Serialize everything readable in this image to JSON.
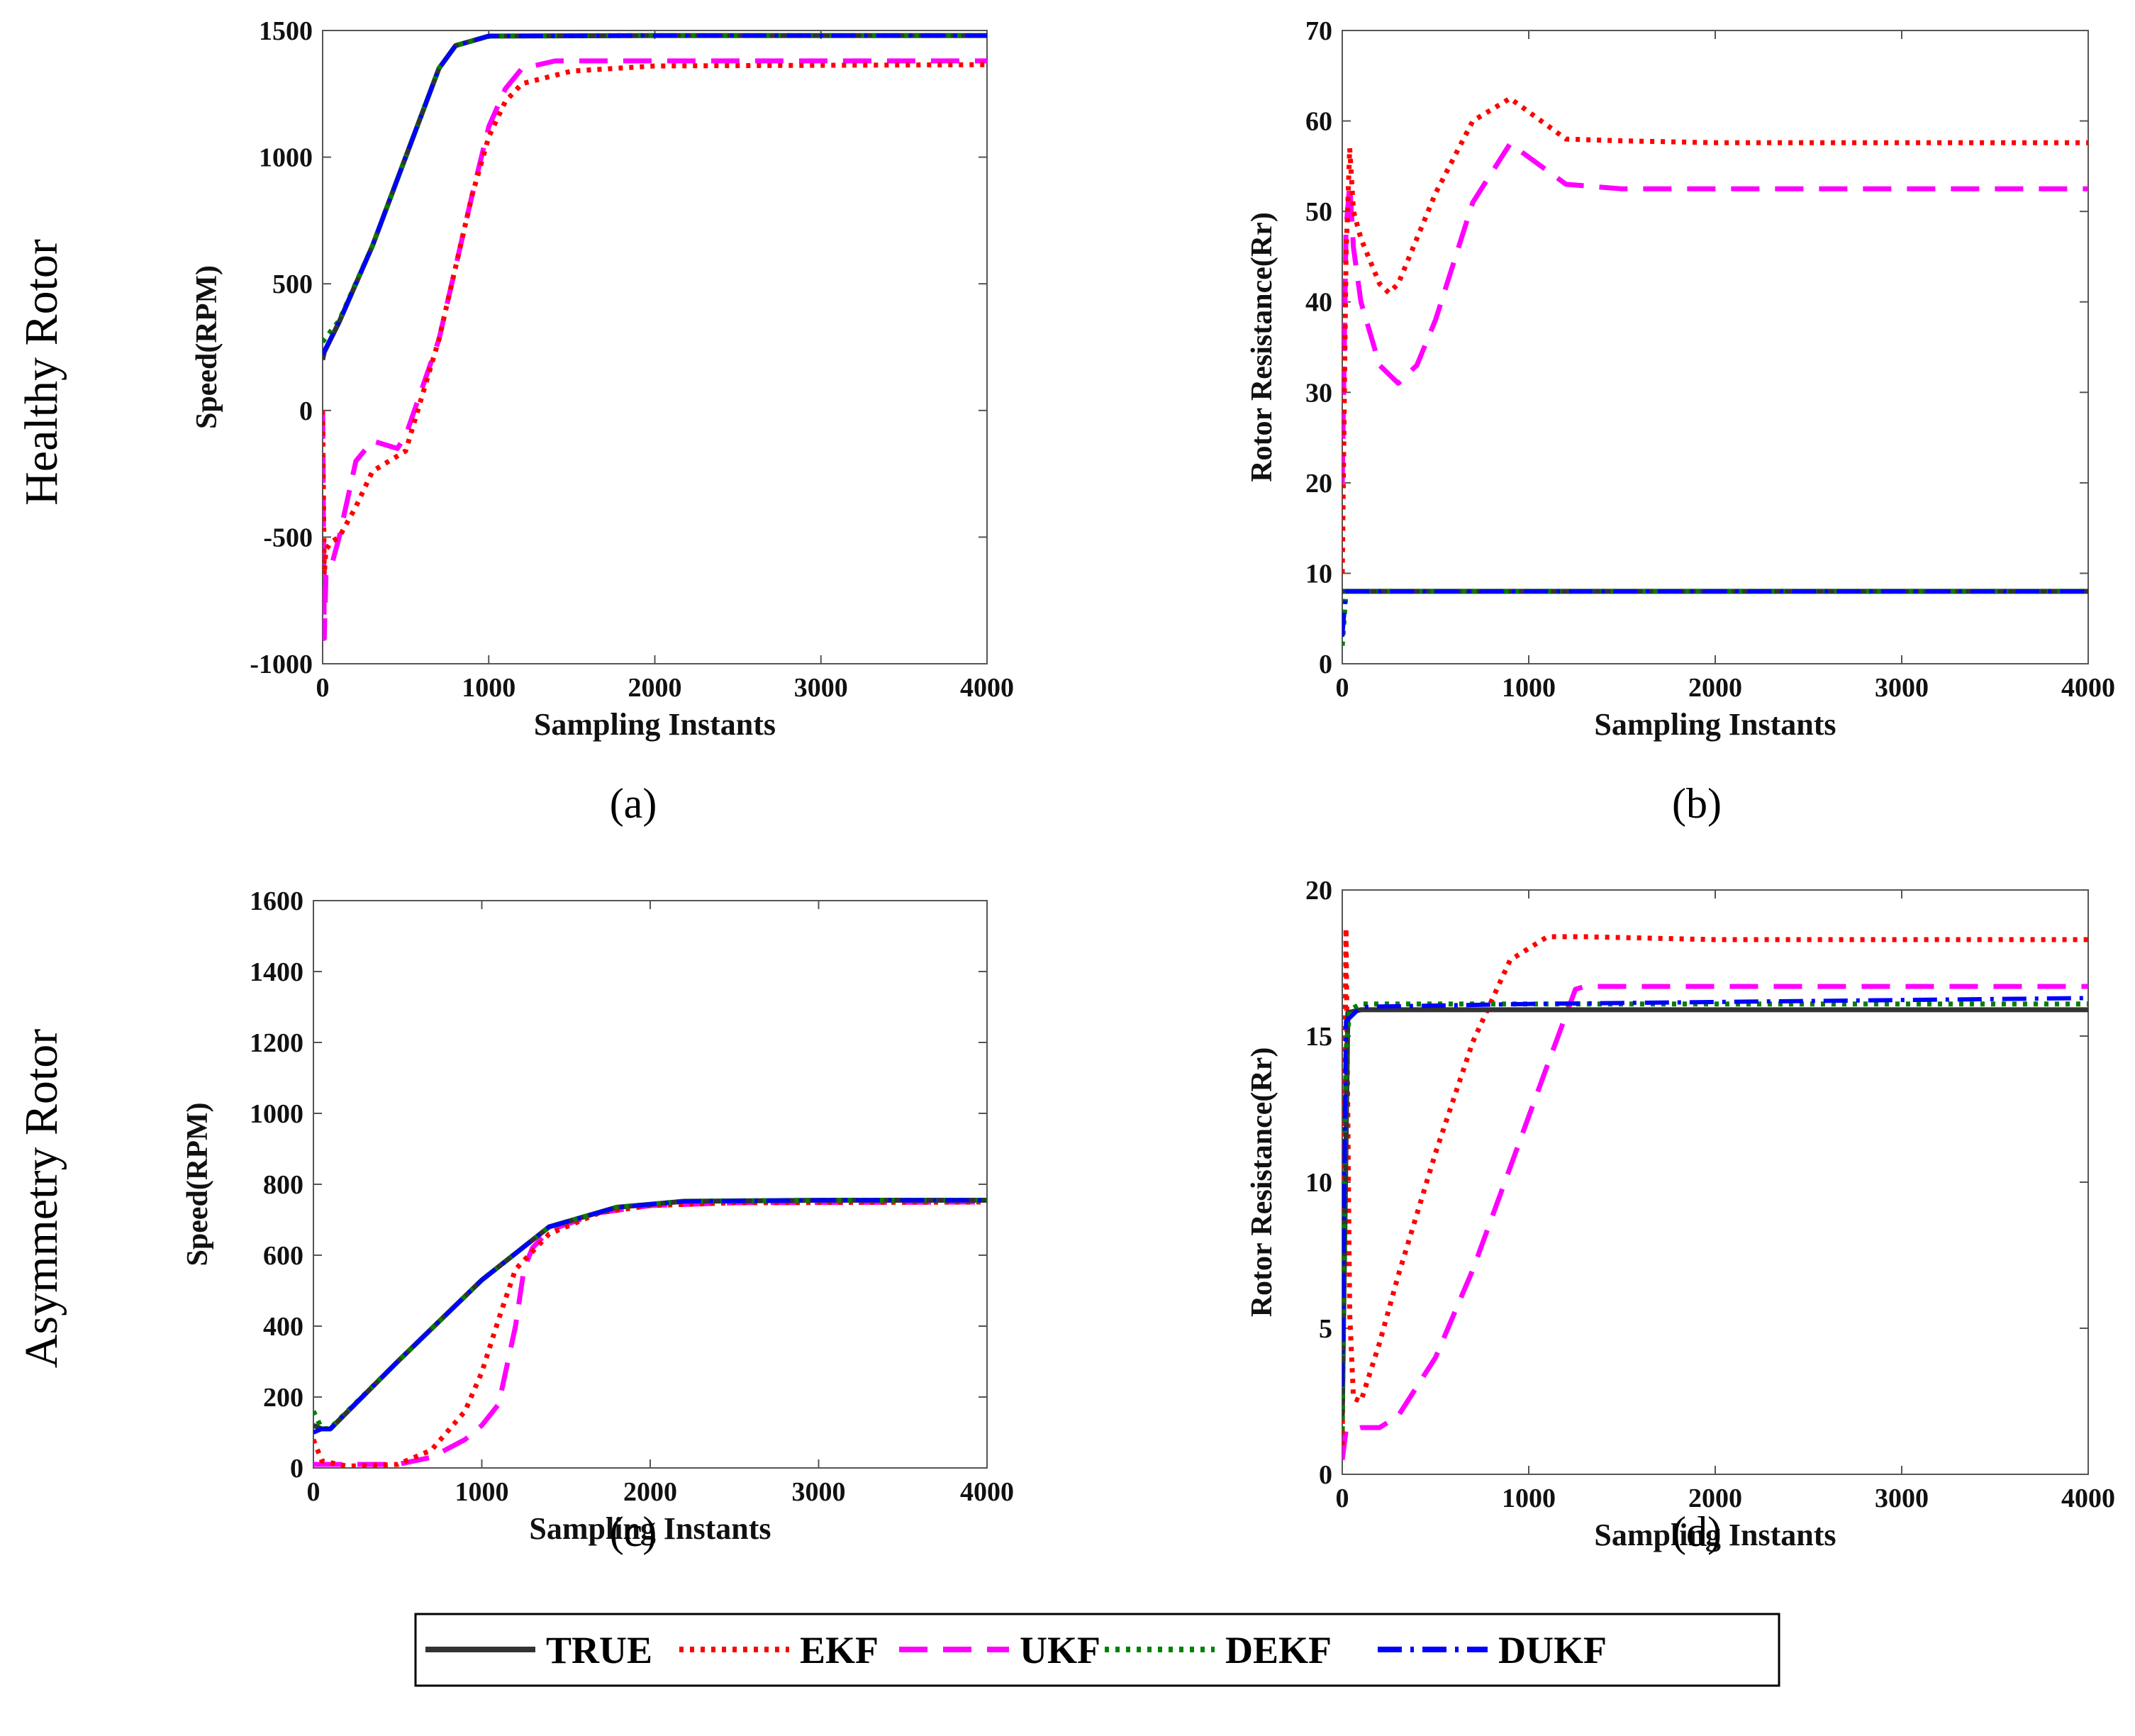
{
  "row_labels": [
    "Healthy Rotor",
    "Asymmetry Rotor"
  ],
  "legend": [
    {
      "name": "TRUE",
      "color": "#333333",
      "style": "solid"
    },
    {
      "name": "EKF",
      "color": "#ff0000",
      "style": "dotted"
    },
    {
      "name": "UKF",
      "color": "#ff00ff",
      "style": "dashed"
    },
    {
      "name": "DEKF",
      "color": "#008000",
      "style": "dotted"
    },
    {
      "name": "DUKF",
      "color": "#0000ff",
      "style": "dashdot"
    }
  ],
  "chart_data": [
    {
      "type": "line",
      "panel": "(a)",
      "title": "",
      "xlabel": "Sampling Instants",
      "ylabel": "Speed(RPM)",
      "xlim": [
        0,
        4000
      ],
      "ylim": [
        -1000,
        1500
      ],
      "xticks": [
        "0",
        "1000",
        "2000",
        "3000",
        "4000"
      ],
      "yticks": [
        "-1000",
        "-500",
        "0",
        "500",
        "1000",
        "1500"
      ],
      "series": [
        {
          "name": "TRUE",
          "x": [
            0,
            10,
            100,
            300,
            500,
            700,
            800,
            1000,
            2000,
            4000
          ],
          "y": [
            200,
            230,
            350,
            650,
            1000,
            1350,
            1440,
            1478,
            1480,
            1480
          ]
        },
        {
          "name": "EKF",
          "x": [
            0,
            10,
            20,
            50,
            100,
            200,
            300,
            500,
            700,
            900,
            1000,
            1100,
            1200,
            1500,
            2000,
            4000
          ],
          "y": [
            0,
            -650,
            -550,
            -520,
            -500,
            -380,
            -240,
            -160,
            280,
            850,
            1080,
            1220,
            1290,
            1340,
            1360,
            1365
          ]
        },
        {
          "name": "UKF",
          "x": [
            0,
            10,
            20,
            50,
            100,
            200,
            300,
            450,
            500,
            700,
            900,
            1000,
            1100,
            1200,
            1400,
            2000,
            4000
          ],
          "y": [
            0,
            -900,
            -650,
            -620,
            -500,
            -200,
            -120,
            -150,
            -100,
            280,
            850,
            1120,
            1270,
            1350,
            1380,
            1380,
            1380
          ]
        },
        {
          "name": "DEKF",
          "x": [
            0,
            10,
            100,
            300,
            500,
            700,
            800,
            1000,
            2000,
            4000
          ],
          "y": [
            270,
            280,
            355,
            650,
            1000,
            1350,
            1440,
            1478,
            1480,
            1480
          ]
        },
        {
          "name": "DUKF",
          "x": [
            0,
            10,
            100,
            300,
            500,
            700,
            800,
            1000,
            2000,
            4000
          ],
          "y": [
            220,
            235,
            350,
            650,
            1000,
            1350,
            1440,
            1478,
            1480,
            1480
          ]
        }
      ]
    },
    {
      "type": "line",
      "panel": "(b)",
      "title": "",
      "xlabel": "Sampling Instants",
      "ylabel": "Rotor Resistance(Rr)",
      "xlim": [
        0,
        4000
      ],
      "ylim": [
        0,
        70
      ],
      "xticks": [
        "0",
        "1000",
        "2000",
        "3000",
        "4000"
      ],
      "yticks": [
        "0",
        "10",
        "20",
        "30",
        "40",
        "50",
        "60",
        "70"
      ],
      "series": [
        {
          "name": "TRUE",
          "x": [
            0,
            20,
            4000
          ],
          "y": [
            8,
            8,
            8
          ]
        },
        {
          "name": "EKF",
          "x": [
            0,
            20,
            40,
            60,
            100,
            200,
            250,
            300,
            500,
            700,
            900,
            1000,
            1200,
            1500,
            2000,
            4000
          ],
          "y": [
            10,
            45,
            57,
            50,
            47,
            42,
            41,
            42,
            52,
            60,
            62.5,
            61,
            58,
            57.8,
            57.6,
            57.6
          ]
        },
        {
          "name": "UKF",
          "x": [
            0,
            20,
            40,
            60,
            100,
            200,
            300,
            400,
            500,
            700,
            900,
            1000,
            1200,
            1500,
            2000,
            4000
          ],
          "y": [
            20,
            48,
            53,
            46,
            40,
            33,
            31,
            33,
            38,
            51,
            57.5,
            56,
            53,
            52.5,
            52.5,
            52.5
          ]
        },
        {
          "name": "DEKF",
          "x": [
            0,
            20,
            4000
          ],
          "y": [
            2,
            8,
            8
          ]
        },
        {
          "name": "DUKF",
          "x": [
            0,
            20,
            4000
          ],
          "y": [
            3,
            8,
            8
          ]
        }
      ]
    },
    {
      "type": "line",
      "panel": "(c)",
      "title": "",
      "xlabel": "Sampling Instants",
      "ylabel": "Speed(RPM)",
      "xlim": [
        0,
        4000
      ],
      "ylim": [
        0,
        1600
      ],
      "xticks": [
        "0",
        "1000",
        "2000",
        "3000",
        "4000"
      ],
      "yticks": [
        "0",
        "200",
        "400",
        "600",
        "800",
        "1000",
        "1200",
        "1400",
        "1600"
      ],
      "series": [
        {
          "name": "TRUE",
          "x": [
            0,
            50,
            100,
            500,
            1000,
            1400,
            1800,
            2200,
            3000,
            4000
          ],
          "y": [
            120,
            110,
            110,
            300,
            530,
            680,
            735,
            752,
            755,
            755
          ]
        },
        {
          "name": "EKF",
          "x": [
            0,
            50,
            200,
            500,
            700,
            900,
            1000,
            1100,
            1200,
            1400,
            1700,
            2000,
            2500,
            4000
          ],
          "y": [
            80,
            20,
            5,
            10,
            50,
            160,
            270,
            420,
            560,
            660,
            720,
            740,
            748,
            750
          ]
        },
        {
          "name": "UKF",
          "x": [
            0,
            300,
            500,
            700,
            900,
            1000,
            1100,
            1200,
            1250,
            1300,
            1400,
            1700,
            2000,
            2500,
            4000
          ],
          "y": [
            10,
            10,
            10,
            30,
            80,
            120,
            180,
            400,
            560,
            620,
            670,
            720,
            740,
            748,
            750
          ]
        },
        {
          "name": "DEKF",
          "x": [
            0,
            50,
            100,
            500,
            1000,
            1400,
            1800,
            2200,
            3000,
            4000
          ],
          "y": [
            160,
            110,
            112,
            300,
            530,
            680,
            735,
            752,
            755,
            755
          ]
        },
        {
          "name": "DUKF",
          "x": [
            0,
            50,
            100,
            500,
            1000,
            1400,
            1800,
            2200,
            3000,
            4000
          ],
          "y": [
            100,
            110,
            110,
            300,
            530,
            680,
            735,
            752,
            755,
            755
          ]
        }
      ]
    },
    {
      "type": "line",
      "panel": "(d)",
      "title": "",
      "xlabel": "Sampling Instants",
      "ylabel": "Rotor Resistance(Rr)",
      "xlim": [
        0,
        4000
      ],
      "ylim": [
        0,
        20
      ],
      "xticks": [
        "0",
        "1000",
        "2000",
        "3000",
        "4000"
      ],
      "yticks": [
        "0",
        "5",
        "10",
        "15",
        "20"
      ],
      "series": [
        {
          "name": "TRUE",
          "x": [
            0,
            30,
            100,
            4000
          ],
          "y": [
            2,
            15.8,
            15.9,
            15.9
          ]
        },
        {
          "name": "EKF",
          "x": [
            0,
            20,
            40,
            60,
            100,
            200,
            300,
            500,
            700,
            900,
            1100,
            1300,
            2000,
            4000
          ],
          "y": [
            1,
            18.7,
            5.5,
            2.6,
            2.5,
            4.5,
            6.8,
            11,
            14.8,
            17.6,
            18.4,
            18.4,
            18.3,
            18.3
          ]
        },
        {
          "name": "UKF",
          "x": [
            0,
            20,
            50,
            100,
            200,
            300,
            500,
            700,
            900,
            1100,
            1250,
            1300,
            2000,
            4000
          ],
          "y": [
            0.5,
            1.5,
            1.5,
            1.6,
            1.6,
            2,
            4,
            7,
            10.5,
            14,
            16.6,
            16.7,
            16.7,
            16.7
          ]
        },
        {
          "name": "DEKF",
          "x": [
            0,
            20,
            40,
            100,
            4000
          ],
          "y": [
            1.5,
            14.5,
            15.9,
            16.1,
            16.1
          ]
        },
        {
          "name": "DUKF",
          "x": [
            0,
            20,
            100,
            1000,
            4000
          ],
          "y": [
            3,
            15.5,
            16,
            16.1,
            16.3
          ]
        }
      ]
    }
  ]
}
